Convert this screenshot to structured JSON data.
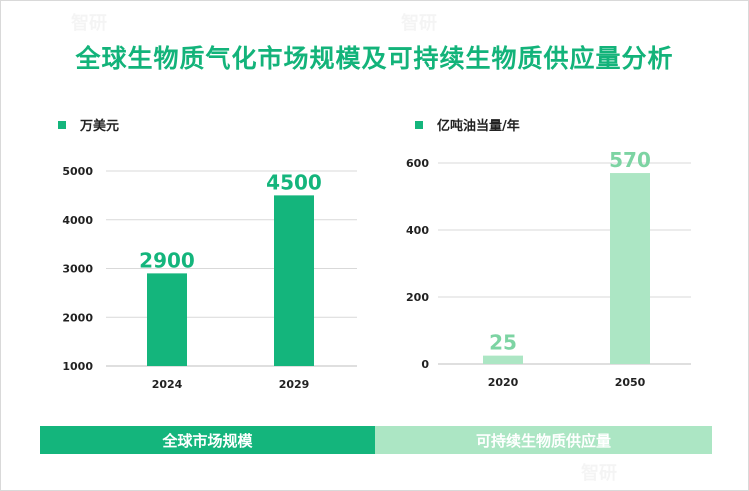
{
  "title": "全球生物质气化市场规模及可持续生物质供应量分析",
  "watermarks": [
    "智研",
    "智研",
    "智研"
  ],
  "bands": {
    "left": "全球市场规模",
    "right": "可持续生物质供应量"
  },
  "colors": {
    "accent": "#14b57c",
    "light": "#ace6c4",
    "label_light": "#7dd4a3"
  },
  "chart_data": [
    {
      "type": "bar",
      "legend": "万美元",
      "categories": [
        "2024",
        "2029"
      ],
      "values": [
        2900,
        4500
      ],
      "value_labels": [
        "2900",
        "4500"
      ],
      "ylim": [
        1000,
        5000
      ],
      "yticks": [
        "1000",
        "2000",
        "3000",
        "4000",
        "5000"
      ],
      "bar_color": "#14b57c",
      "label_color": "#14b57c",
      "grid": true
    },
    {
      "type": "bar",
      "legend": "亿吨油当量/年",
      "categories": [
        "2020",
        "2050"
      ],
      "values": [
        25,
        570
      ],
      "value_labels": [
        "25",
        "570"
      ],
      "ylim": [
        0,
        600
      ],
      "yticks": [
        "0",
        "200",
        "400",
        "600"
      ],
      "bar_color": "#ace6c4",
      "label_color": "#7dd4a3",
      "grid": true
    }
  ]
}
